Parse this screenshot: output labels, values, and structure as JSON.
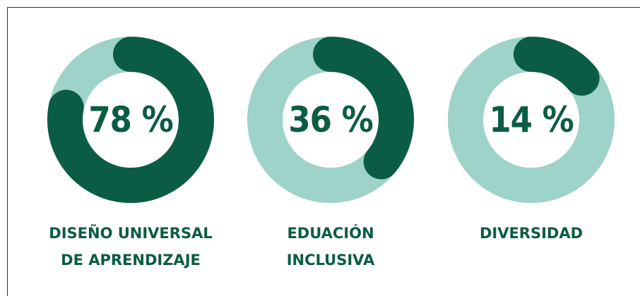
{
  "chart_data": {
    "type": "gauge",
    "categories": [
      "DISEÑO UNIVERSAL DE APRENDIZAJE",
      "EDUACIÓN INCLUSIVA",
      "DIVERSIDAD"
    ],
    "values": [
      78,
      36,
      14
    ],
    "value_labels": [
      "78 %",
      "36 %",
      "14 %"
    ],
    "ylim": [
      0,
      100
    ],
    "color": "#0b5c45",
    "track_color": "#9dd3c8"
  }
}
